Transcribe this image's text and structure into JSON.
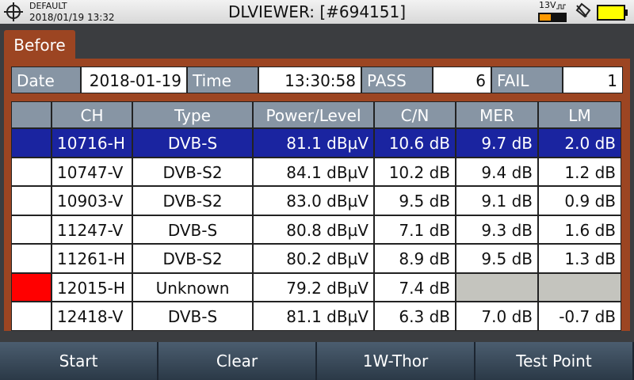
{
  "status_bar": {
    "profile": "DEFAULT",
    "datetime": "2018/01/19 13:32",
    "title": "DLVIEWER: [#694151]",
    "voltage": "13V"
  },
  "tab": "Before",
  "summary": {
    "date_label": "Date",
    "date": "2018-01-19",
    "time_label": "Time",
    "time": "13:30:58",
    "pass_label": "PASS",
    "pass": 6,
    "fail_label": "FAIL",
    "fail": 1
  },
  "table": {
    "columns": [
      "CH",
      "Type",
      "Power/Level",
      "C/N",
      "MER",
      "LM"
    ],
    "rows": [
      [
        "10716-H",
        "DVB-S",
        "81.1 dBµV",
        "10.6 dB",
        "9.7 dB",
        "2.0 dB"
      ],
      [
        "10747-V",
        "DVB-S2",
        "84.1 dBµV",
        "10.2 dB",
        "9.4 dB",
        "1.2 dB"
      ],
      [
        "10903-V",
        "DVB-S2",
        "83.0 dBµV",
        "9.5 dB",
        "9.1 dB",
        "0.9 dB"
      ],
      [
        "11247-V",
        "DVB-S",
        "80.8 dBµV",
        "7.1 dB",
        "9.3 dB",
        "1.6 dB"
      ],
      [
        "11261-H",
        "DVB-S2",
        "80.2 dBµV",
        "8.9 dB",
        "9.5 dB",
        "1.3 dB"
      ],
      [
        "12015-H",
        "Unknown",
        "79.2 dBµV",
        "7.4 dB",
        null,
        null
      ],
      [
        "12418-V",
        "DVB-S",
        "81.1 dBµV",
        "6.3 dB",
        "7.0 dB",
        "-0.7 dB"
      ]
    ]
  },
  "buttons": [
    "Start",
    "Clear",
    "1W-Thor",
    "Test Point"
  ]
}
